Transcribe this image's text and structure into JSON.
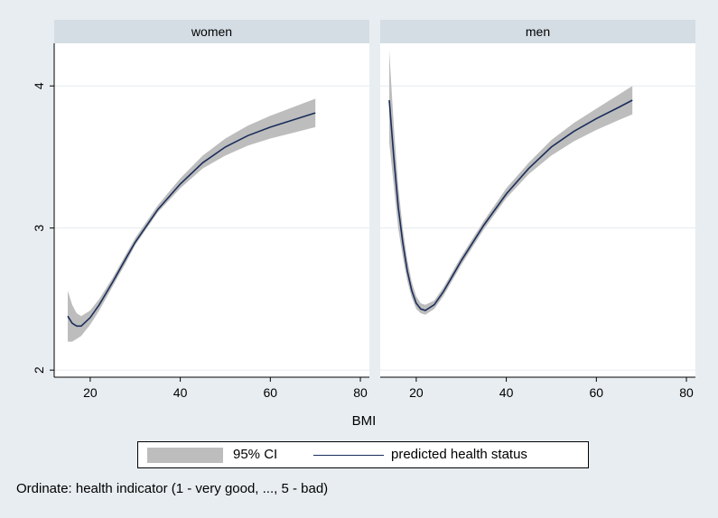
{
  "chart_data": {
    "type": "line",
    "panels": [
      {
        "title": "women",
        "x": [
          15,
          16,
          17,
          18,
          20,
          22,
          25,
          28,
          30,
          35,
          40,
          45,
          50,
          55,
          60,
          65,
          70
        ],
        "series": [
          {
            "name": "predicted health status",
            "values": [
              2.38,
              2.33,
              2.31,
              2.31,
              2.37,
              2.46,
              2.62,
              2.79,
              2.9,
              3.13,
              3.31,
              3.46,
              3.57,
              3.65,
              3.71,
              3.76,
              3.81
            ]
          },
          {
            "name": "95% CI",
            "lower": [
              2.2,
              2.2,
              2.22,
              2.24,
              2.32,
              2.42,
              2.59,
              2.76,
              2.88,
              3.11,
              3.28,
              3.42,
              3.51,
              3.58,
              3.63,
              3.67,
              3.71
            ],
            "upper": [
              2.56,
              2.46,
              2.4,
              2.38,
              2.42,
              2.5,
              2.65,
              2.82,
              2.93,
              3.16,
              3.35,
              3.51,
              3.63,
              3.72,
              3.79,
              3.85,
              3.91
            ]
          }
        ]
      },
      {
        "title": "men",
        "x": [
          14,
          15,
          16,
          17,
          18,
          19,
          20,
          21,
          22,
          24,
          26,
          28,
          30,
          35,
          40,
          45,
          50,
          55,
          60,
          65,
          68
        ],
        "series": [
          {
            "name": "predicted health status",
            "values": [
              3.9,
              3.5,
              3.15,
              2.9,
              2.7,
              2.56,
              2.47,
              2.43,
              2.42,
              2.46,
              2.55,
              2.66,
              2.77,
              3.02,
              3.24,
              3.42,
              3.57,
              3.68,
              3.77,
              3.85,
              3.9
            ]
          },
          {
            "name": "95% CI",
            "lower": [
              3.6,
              3.3,
              3.0,
              2.8,
              2.63,
              2.51,
              2.43,
              2.4,
              2.39,
              2.43,
              2.52,
              2.63,
              2.74,
              2.99,
              3.21,
              3.38,
              3.51,
              3.61,
              3.69,
              3.76,
              3.8
            ],
            "upper": [
              4.25,
              3.72,
              3.3,
              3.0,
              2.78,
              2.62,
              2.52,
              2.47,
              2.46,
              2.49,
              2.58,
              2.69,
              2.8,
              3.05,
              3.28,
              3.46,
              3.62,
              3.74,
              3.84,
              3.94,
              4.0
            ]
          }
        ]
      }
    ],
    "xlabel": "BMI",
    "ylabel": "",
    "xlim": [
      12,
      82
    ],
    "ylim": [
      1.95,
      4.3
    ],
    "xticks": [
      "20",
      "40",
      "60",
      "80"
    ],
    "yticks": [
      "2",
      "3",
      "4"
    ],
    "grid": true,
    "legend": {
      "position": "bottom",
      "ci_label": "95% CI",
      "line_label": "predicted health status"
    },
    "note": "Ordinate: health indicator (1 - very good, ..., 5 - bad)"
  }
}
